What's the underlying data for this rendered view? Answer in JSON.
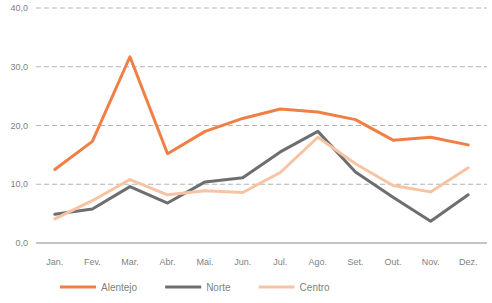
{
  "chart_data": {
    "type": "line",
    "categories": [
      "Jan.",
      "Fev.",
      "Mar.",
      "Abr.",
      "Mai.",
      "Jun.",
      "Jul.",
      "Ago.",
      "Set.",
      "Out.",
      "Nov.",
      "Dez."
    ],
    "series": [
      {
        "name": "Alentejo",
        "color": "#f07f45",
        "values": [
          12.5,
          17.3,
          31.7,
          15.2,
          19.0,
          21.2,
          22.8,
          22.3,
          21.0,
          17.5,
          18.0,
          16.7
        ]
      },
      {
        "name": "Norte",
        "color": "#6d6e70",
        "values": [
          4.9,
          5.8,
          9.6,
          6.8,
          10.4,
          11.1,
          15.5,
          19.0,
          12.1,
          7.8,
          3.7,
          8.2
        ]
      },
      {
        "name": "Centro",
        "color": "#f8c3a3",
        "values": [
          4.1,
          7.2,
          10.8,
          8.2,
          8.9,
          8.6,
          12.0,
          18.0,
          13.5,
          9.8,
          8.7,
          12.8
        ]
      }
    ],
    "ylim": [
      0,
      40
    ],
    "yticks": [
      {
        "value": 0,
        "label": "0,0"
      },
      {
        "value": 10,
        "label": "10,0"
      },
      {
        "value": 20,
        "label": "20,0"
      },
      {
        "value": 30,
        "label": "30,0"
      },
      {
        "value": 40,
        "label": "40,0"
      }
    ],
    "grid": true,
    "legend": "bottom"
  }
}
